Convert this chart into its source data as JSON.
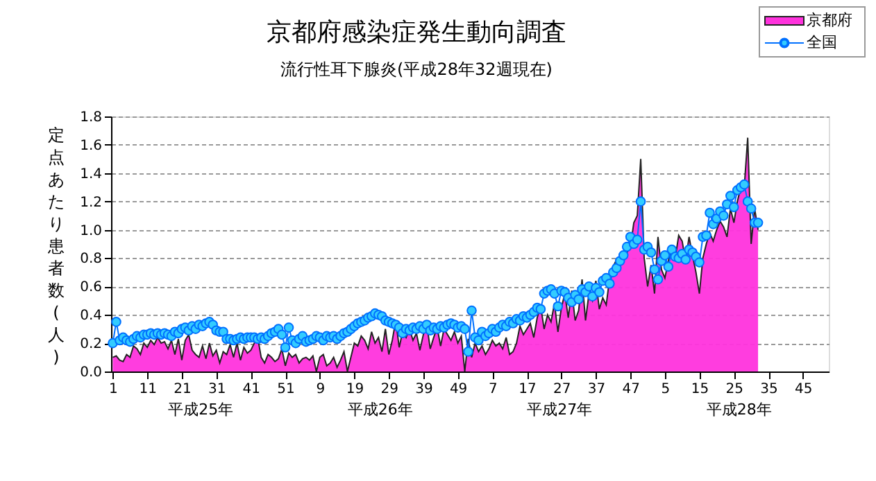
{
  "chart_data": {
    "type": "line",
    "title": "京都府感染症発生動向調査",
    "subtitle": "流行性耳下腺炎(平成28年32週現在)",
    "ylabel": "定点あたり患者数(人)",
    "annotations": [
      "平成25年",
      "平成26年",
      "平成27年",
      "平成28年"
    ],
    "categories": [
      "1",
      null,
      null,
      null,
      null,
      null,
      null,
      null,
      null,
      null,
      "11",
      null,
      null,
      null,
      null,
      null,
      null,
      null,
      null,
      null,
      "21",
      null,
      null,
      null,
      null,
      null,
      null,
      null,
      null,
      null,
      "31",
      null,
      null,
      null,
      null,
      null,
      null,
      null,
      null,
      null,
      "41",
      null,
      null,
      null,
      null,
      null,
      null,
      null,
      null,
      null,
      "51",
      null,
      null,
      null,
      null,
      null,
      null,
      null,
      null,
      null,
      "9",
      null,
      null,
      null,
      null,
      null,
      null,
      null,
      null,
      null,
      "19",
      null,
      null,
      null,
      null,
      null,
      null,
      null,
      null,
      null,
      "29",
      null,
      null,
      null,
      null,
      null,
      null,
      null,
      null,
      null,
      "39",
      null,
      null,
      null,
      null,
      null,
      null,
      null,
      null,
      null,
      "49",
      null,
      null,
      null,
      null,
      null,
      null,
      null,
      null,
      null,
      "7",
      null,
      null,
      null,
      null,
      null,
      null,
      null,
      null,
      null,
      "17",
      null,
      null,
      null,
      null,
      null,
      null,
      null,
      null,
      null,
      "27",
      null,
      null,
      null,
      null,
      null,
      null,
      null,
      null,
      null,
      "37",
      null,
      null,
      null,
      null,
      null,
      null,
      null,
      null,
      null,
      "47",
      null,
      null,
      null,
      null,
      null,
      null,
      null,
      null,
      null,
      "5",
      null,
      null,
      null,
      null,
      null,
      null,
      null,
      null,
      null,
      "15",
      null,
      null,
      null,
      null,
      null,
      null,
      null,
      null,
      null,
      "25",
      null,
      null,
      null,
      null,
      null,
      null,
      null,
      null,
      null,
      "35",
      null,
      null,
      null,
      null,
      null,
      null,
      null,
      null,
      null,
      "45",
      null,
      null,
      null,
      null,
      null,
      null,
      null
    ],
    "series": [
      {
        "name": "京都府",
        "type": "area",
        "color": "#ff33dd",
        "values": [
          0.1,
          0.11,
          0.08,
          0.07,
          0.12,
          0.1,
          0.18,
          0.16,
          0.12,
          0.2,
          0.17,
          0.22,
          0.19,
          0.24,
          0.2,
          0.21,
          0.16,
          0.22,
          0.12,
          0.23,
          0.08,
          0.22,
          0.26,
          0.15,
          0.12,
          0.1,
          0.18,
          0.09,
          0.2,
          0.11,
          0.15,
          0.06,
          0.14,
          0.12,
          0.19,
          0.1,
          0.2,
          0.08,
          0.17,
          0.13,
          0.15,
          0.2,
          0.24,
          0.1,
          0.06,
          0.12,
          0.1,
          0.07,
          0.09,
          0.16,
          0.04,
          0.13,
          0.1,
          0.12,
          0.06,
          0.09,
          0.1,
          0.08,
          0.11,
          0.0,
          0.1,
          0.12,
          0.04,
          0.06,
          0.1,
          0.03,
          0.08,
          0.14,
          0.0,
          0.1,
          0.2,
          0.18,
          0.25,
          0.22,
          0.16,
          0.28,
          0.2,
          0.24,
          0.14,
          0.3,
          0.12,
          0.22,
          0.36,
          0.17,
          0.28,
          0.24,
          0.3,
          0.22,
          0.27,
          0.15,
          0.26,
          0.33,
          0.16,
          0.24,
          0.31,
          0.18,
          0.3,
          0.26,
          0.22,
          0.28,
          0.2,
          0.25,
          0.0,
          0.23,
          0.1,
          0.2,
          0.14,
          0.18,
          0.12,
          0.16,
          0.22,
          0.18,
          0.2,
          0.16,
          0.24,
          0.12,
          0.14,
          0.2,
          0.32,
          0.26,
          0.3,
          0.34,
          0.24,
          0.38,
          0.46,
          0.3,
          0.4,
          0.35,
          0.48,
          0.28,
          0.45,
          0.55,
          0.38,
          0.57,
          0.36,
          0.43,
          0.65,
          0.36,
          0.55,
          0.5,
          0.64,
          0.44,
          0.52,
          0.47,
          0.66,
          0.74,
          0.79,
          0.74,
          0.82,
          0.84,
          0.88,
          1.05,
          1.1,
          1.5,
          0.8,
          0.6,
          0.75,
          0.55,
          0.95,
          0.72,
          0.66,
          0.78,
          0.86,
          0.8,
          0.96,
          0.92,
          0.78,
          0.95,
          0.82,
          0.7,
          0.55,
          0.8,
          0.9,
          0.98,
          0.92,
          1.0,
          1.06,
          1.02,
          0.95,
          1.15,
          1.05,
          1.2,
          1.3,
          1.3,
          1.65,
          0.9,
          1.15,
          1.0,
          null,
          null,
          null,
          null,
          null,
          null,
          null,
          null,
          null,
          null,
          null,
          null,
          null,
          null,
          null,
          null,
          null,
          null,
          null,
          null
        ]
      },
      {
        "name": "全国",
        "color": "#0070ff",
        "marker": "circle",
        "values": [
          0.2,
          0.35,
          0.22,
          0.24,
          0.22,
          0.21,
          0.23,
          0.25,
          0.24,
          0.26,
          0.26,
          0.27,
          0.26,
          0.27,
          0.26,
          0.27,
          0.26,
          0.25,
          0.28,
          0.27,
          0.3,
          0.31,
          0.29,
          0.32,
          0.3,
          0.33,
          0.32,
          0.34,
          0.35,
          0.33,
          0.29,
          0.28,
          0.28,
          0.23,
          0.23,
          0.22,
          0.23,
          0.24,
          0.23,
          0.24,
          0.24,
          0.24,
          0.23,
          0.24,
          0.23,
          0.25,
          0.27,
          0.28,
          0.3,
          0.26,
          0.17,
          0.31,
          0.22,
          0.2,
          0.23,
          0.25,
          0.21,
          0.22,
          0.23,
          0.25,
          0.24,
          0.22,
          0.25,
          0.24,
          0.25,
          0.23,
          0.25,
          0.27,
          0.28,
          0.3,
          0.32,
          0.34,
          0.35,
          0.36,
          0.38,
          0.39,
          0.41,
          0.4,
          0.39,
          0.36,
          0.35,
          0.34,
          0.33,
          0.31,
          0.27,
          0.3,
          0.29,
          0.31,
          0.3,
          0.32,
          0.3,
          0.33,
          0.29,
          0.31,
          0.3,
          0.32,
          0.31,
          0.33,
          0.34,
          0.33,
          0.31,
          0.32,
          0.3,
          0.14,
          0.43,
          0.24,
          0.22,
          0.28,
          0.25,
          0.27,
          0.3,
          0.28,
          0.31,
          0.33,
          0.32,
          0.35,
          0.34,
          0.37,
          0.36,
          0.39,
          0.38,
          0.4,
          0.42,
          0.45,
          0.44,
          0.55,
          0.57,
          0.58,
          0.55,
          0.46,
          0.57,
          0.56,
          0.52,
          0.49,
          0.54,
          0.51,
          0.58,
          0.56,
          0.6,
          0.53,
          0.59,
          0.56,
          0.64,
          0.66,
          0.62,
          0.7,
          0.73,
          0.78,
          0.82,
          0.88,
          0.95,
          0.9,
          0.93,
          1.2,
          0.86,
          0.88,
          0.84,
          0.72,
          0.65,
          0.78,
          0.82,
          0.74,
          0.86,
          0.81,
          0.8,
          0.83,
          0.79,
          0.86,
          0.84,
          0.81,
          0.77,
          0.95,
          0.96,
          1.12,
          1.04,
          1.08,
          1.13,
          1.1,
          1.18,
          1.24,
          1.16,
          1.28,
          1.3,
          1.32,
          1.2,
          1.15,
          1.05,
          1.05,
          null,
          null,
          null,
          null,
          null,
          null,
          null,
          null,
          null,
          null,
          null,
          null,
          null,
          null,
          null,
          null,
          null,
          null,
          null,
          null
        ]
      }
    ],
    "ylim": [
      0,
      1.8
    ],
    "yticks": [
      {
        "value": 0,
        "label": "0.0"
      },
      {
        "value": 0.2,
        "label": "0.2"
      },
      {
        "value": 0.4,
        "label": "0.4"
      },
      {
        "value": 0.6,
        "label": "0.6"
      },
      {
        "value": 0.8,
        "label": "0.8"
      },
      {
        "value": 1.0,
        "label": "1.0"
      },
      {
        "value": 1.2,
        "label": "1.2"
      },
      {
        "value": 1.4,
        "label": "1.4"
      },
      {
        "value": 1.6,
        "label": "1.6"
      },
      {
        "value": 1.8,
        "label": "1.8"
      }
    ],
    "grid": "y",
    "legend": "top right",
    "line_style": "solid"
  }
}
